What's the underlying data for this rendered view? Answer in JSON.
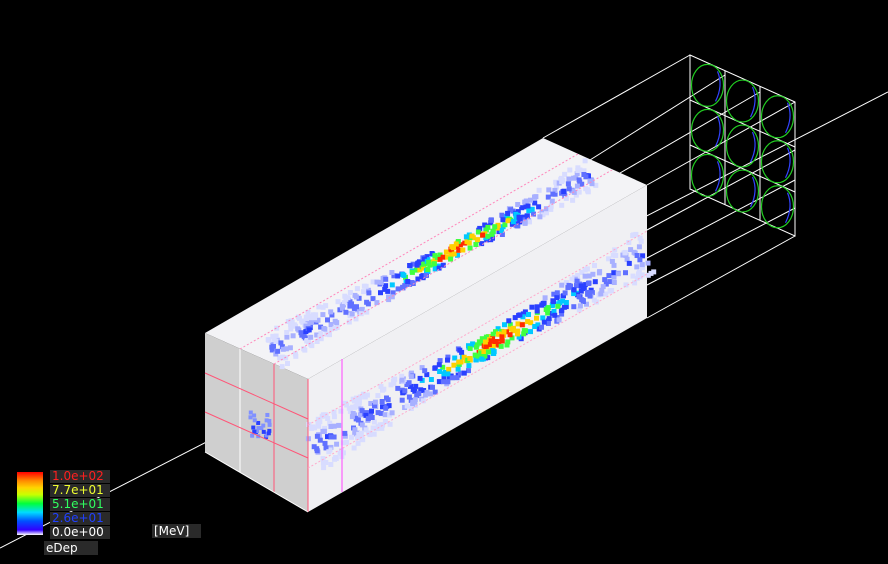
{
  "scale_legend": {
    "labels": [
      {
        "text": "1.0e+02",
        "color": "#ff2020"
      },
      {
        "text": "7.7e+01",
        "color": "#f0ff30"
      },
      {
        "text": "5.1e+01",
        "color": "#30ff60"
      },
      {
        "text": "2.6e+01",
        "color": "#2040ff"
      },
      {
        "text": "0.0e+00",
        "color": "#ffffff"
      }
    ],
    "unit": "[MeV]",
    "quantity": "eDep"
  },
  "colors": {
    "background": "#000000",
    "wireframe": "#ffffff",
    "fiber_outline": "#22cc22",
    "fiber_inner": "#3344ff",
    "cell_border": "#ff4477",
    "block_face": "#f4f4f4",
    "block_shade": "#d8d8d8"
  }
}
